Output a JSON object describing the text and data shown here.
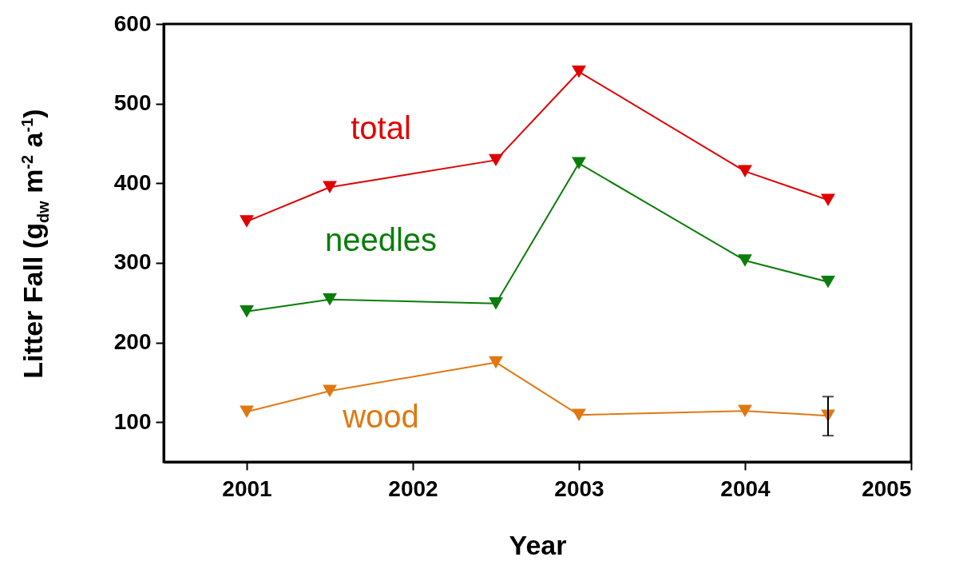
{
  "chart_data": {
    "type": "line",
    "xlabel": "Year",
    "ylabel": "Litter Fall (g$_{dw}$ m$^{-2}$ a$^{-1}$)",
    "x": [
      2001,
      2001.5,
      2002.5,
      2003,
      2004,
      2004.5
    ],
    "series": [
      {
        "name": "total",
        "color": "#e00000",
        "values": [
          352,
          395,
          429,
          540,
          415,
          379
        ]
      },
      {
        "name": "needles",
        "color": "#0a7d0a",
        "values": [
          239,
          254,
          249,
          425,
          303,
          276
        ]
      },
      {
        "name": "wood",
        "color": "#e07812",
        "values": [
          113,
          139,
          175,
          109,
          114,
          108
        ],
        "errors": [
          null,
          null,
          null,
          null,
          null,
          [
            83,
            132
          ]
        ]
      }
    ],
    "xlim": [
      2000.5,
      2005
    ],
    "xticks": [
      2001,
      2002,
      2003,
      2004,
      2005
    ],
    "ylim": [
      50,
      600
    ],
    "yticks": [
      100,
      200,
      300,
      400,
      500,
      600
    ],
    "marker": "triangle",
    "line_style": "solid",
    "legend": false
  }
}
